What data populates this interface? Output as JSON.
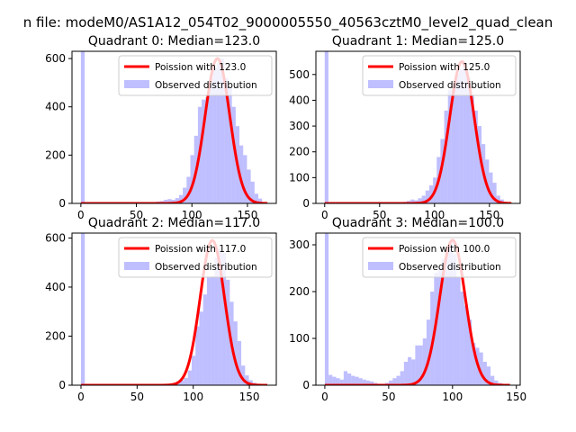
{
  "figure": {
    "suptitle": "n file: modeM0/AS1A12_054T02_9000005550_40563cztM0_level2_quad_clean"
  },
  "chart_data": [
    {
      "type": "bar",
      "title": "Quadrant 0: Median=123.0",
      "xlim": [
        -8,
        176
      ],
      "ylim": [
        0,
        630
      ],
      "xticks": [
        0,
        50,
        100,
        150
      ],
      "yticks": [
        0,
        200,
        400,
        600
      ],
      "legend": "top-right",
      "series": [
        {
          "name": "Poission with 123.0",
          "kind": "line",
          "color": "#ff0000",
          "mean": 123.0,
          "x_range": [
            0,
            168
          ],
          "scale": 600
        },
        {
          "name": "Observed distribution",
          "kind": "histogram",
          "color": "#8080ff",
          "bin_width": 3.4,
          "bins": [
            [
              0,
              630
            ],
            [
              3.4,
              0
            ],
            [
              6.8,
              0
            ],
            [
              10.2,
              0
            ],
            [
              13.6,
              0
            ],
            [
              17,
              0
            ],
            [
              20.4,
              0
            ],
            [
              23.8,
              0
            ],
            [
              27.2,
              0
            ],
            [
              30.6,
              0
            ],
            [
              34,
              0
            ],
            [
              37.4,
              0
            ],
            [
              40.8,
              0
            ],
            [
              44.2,
              0
            ],
            [
              47.6,
              0
            ],
            [
              51,
              0
            ],
            [
              54.4,
              0
            ],
            [
              57.8,
              0
            ],
            [
              61.2,
              0
            ],
            [
              64.6,
              3
            ],
            [
              68,
              8
            ],
            [
              71.4,
              10
            ],
            [
              74.8,
              15
            ],
            [
              78.2,
              18
            ],
            [
              81.6,
              15
            ],
            [
              85,
              22
            ],
            [
              88.4,
              35
            ],
            [
              91.8,
              65
            ],
            [
              95.2,
              110
            ],
            [
              98.6,
              200
            ],
            [
              102,
              280
            ],
            [
              105.4,
              400
            ],
            [
              108.8,
              430
            ],
            [
              112.2,
              440
            ],
            [
              115.6,
              520
            ],
            [
              119,
              560
            ],
            [
              122.4,
              580
            ],
            [
              125.8,
              600
            ],
            [
              129.2,
              520
            ],
            [
              132.6,
              480
            ],
            [
              136,
              400
            ],
            [
              139.4,
              320
            ],
            [
              142.8,
              240
            ],
            [
              146.2,
              200
            ],
            [
              149.6,
              140
            ],
            [
              153,
              90
            ],
            [
              156.4,
              40
            ],
            [
              159.8,
              20
            ],
            [
              163.2,
              5
            ],
            [
              166.6,
              2
            ]
          ]
        }
      ]
    },
    {
      "type": "bar",
      "title": "Quadrant 1: Median=125.0",
      "xlim": [
        -8,
        178
      ],
      "ylim": [
        0,
        590
      ],
      "xticks": [
        0,
        50,
        100,
        150
      ],
      "yticks": [
        0,
        100,
        200,
        300,
        400,
        500
      ],
      "legend": "top-right",
      "series": [
        {
          "name": "Poission with 125.0",
          "kind": "line",
          "color": "#ff0000",
          "mean": 125.0,
          "x_range": [
            0,
            170
          ],
          "scale": 550
        },
        {
          "name": "Observed distribution",
          "kind": "histogram",
          "color": "#8080ff",
          "bin_width": 3.4,
          "bins": [
            [
              0,
              590
            ],
            [
              3.4,
              0
            ],
            [
              6.8,
              0
            ],
            [
              10.2,
              0
            ],
            [
              13.6,
              0
            ],
            [
              17,
              0
            ],
            [
              20.4,
              0
            ],
            [
              23.8,
              0
            ],
            [
              27.2,
              0
            ],
            [
              30.6,
              0
            ],
            [
              34,
              0
            ],
            [
              37.4,
              0
            ],
            [
              40.8,
              0
            ],
            [
              44.2,
              0
            ],
            [
              47.6,
              0
            ],
            [
              51,
              0
            ],
            [
              54.4,
              0
            ],
            [
              57.8,
              0
            ],
            [
              61.2,
              0
            ],
            [
              64.6,
              2
            ],
            [
              68,
              5
            ],
            [
              71.4,
              6
            ],
            [
              74.8,
              10
            ],
            [
              78.2,
              15
            ],
            [
              81.6,
              12
            ],
            [
              85,
              20
            ],
            [
              88.4,
              30
            ],
            [
              91.8,
              50
            ],
            [
              95.2,
              70
            ],
            [
              98.6,
              100
            ],
            [
              102,
              180
            ],
            [
              105.4,
              250
            ],
            [
              108.8,
              360
            ],
            [
              112.2,
              440
            ],
            [
              115.6,
              470
            ],
            [
              119,
              500
            ],
            [
              122.4,
              520
            ],
            [
              125.8,
              545
            ],
            [
              129.2,
              490
            ],
            [
              132.6,
              420
            ],
            [
              136,
              360
            ],
            [
              139.4,
              300
            ],
            [
              142.8,
              230
            ],
            [
              146.2,
              170
            ],
            [
              149.6,
              120
            ],
            [
              153,
              80
            ],
            [
              156.4,
              30
            ],
            [
              159.8,
              15
            ],
            [
              163.2,
              5
            ],
            [
              166.6,
              2
            ]
          ]
        }
      ]
    },
    {
      "type": "bar",
      "title": "Quadrant 2: Median=117.0",
      "xlim": [
        -8,
        174
      ],
      "ylim": [
        0,
        620
      ],
      "xticks": [
        0,
        50,
        100,
        150
      ],
      "yticks": [
        0,
        200,
        400,
        600
      ],
      "legend": "top-right",
      "series": [
        {
          "name": "Poission with 117.0",
          "kind": "line",
          "color": "#ff0000",
          "mean": 117.0,
          "x_range": [
            0,
            166
          ],
          "scale": 590
        },
        {
          "name": "Observed distribution",
          "kind": "histogram",
          "color": "#8080ff",
          "bin_width": 3.4,
          "bins": [
            [
              0,
              620
            ],
            [
              3.4,
              0
            ],
            [
              6.8,
              0
            ],
            [
              10.2,
              0
            ],
            [
              13.6,
              0
            ],
            [
              17,
              0
            ],
            [
              20.4,
              0
            ],
            [
              23.8,
              0
            ],
            [
              27.2,
              0
            ],
            [
              30.6,
              0
            ],
            [
              34,
              0
            ],
            [
              37.4,
              0
            ],
            [
              40.8,
              0
            ],
            [
              44.2,
              0
            ],
            [
              47.6,
              0
            ],
            [
              51,
              0
            ],
            [
              54.4,
              0
            ],
            [
              57.8,
              0
            ],
            [
              61.2,
              0
            ],
            [
              64.6,
              0
            ],
            [
              68,
              2
            ],
            [
              71.4,
              3
            ],
            [
              74.8,
              3
            ],
            [
              78.2,
              5
            ],
            [
              81.6,
              8
            ],
            [
              85,
              12
            ],
            [
              88.4,
              20
            ],
            [
              91.8,
              30
            ],
            [
              95.2,
              60
            ],
            [
              98.6,
              120
            ],
            [
              102,
              240
            ],
            [
              105.4,
              300
            ],
            [
              108.8,
              370
            ],
            [
              112.2,
              440
            ],
            [
              115.6,
              445
            ],
            [
              119,
              520
            ],
            [
              122.4,
              560
            ],
            [
              125.8,
              540
            ],
            [
              129.2,
              430
            ],
            [
              132.6,
              340
            ],
            [
              136,
              260
            ],
            [
              139.4,
              180
            ],
            [
              142.8,
              80
            ],
            [
              146.2,
              40
            ],
            [
              149.6,
              20
            ],
            [
              153,
              10
            ],
            [
              156.4,
              5
            ],
            [
              159.8,
              2
            ],
            [
              163.2,
              1
            ],
            [
              166.6,
              0
            ]
          ]
        }
      ]
    },
    {
      "type": "bar",
      "title": "Quadrant 3: Median=100.0",
      "xlim": [
        -7,
        153
      ],
      "ylim": [
        0,
        325
      ],
      "xticks": [
        0,
        50,
        100,
        150
      ],
      "yticks": [
        0,
        100,
        200,
        300
      ],
      "legend": "top-right",
      "series": [
        {
          "name": "Poission with 100.0",
          "kind": "line",
          "color": "#ff0000",
          "mean": 100.0,
          "x_range": [
            0,
            145
          ],
          "scale": 310
        },
        {
          "name": "Observed distribution",
          "kind": "histogram",
          "color": "#8080ff",
          "bin_width": 2.95,
          "bins": [
            [
              0,
              325
            ],
            [
              2.95,
              22
            ],
            [
              5.9,
              18
            ],
            [
              8.85,
              15
            ],
            [
              11.8,
              12
            ],
            [
              14.75,
              30
            ],
            [
              17.7,
              25
            ],
            [
              20.65,
              20
            ],
            [
              23.6,
              18
            ],
            [
              26.55,
              15
            ],
            [
              29.5,
              12
            ],
            [
              32.45,
              10
            ],
            [
              35.4,
              8
            ],
            [
              38.35,
              5
            ],
            [
              41.3,
              3
            ],
            [
              44.25,
              2
            ],
            [
              47.2,
              5
            ],
            [
              50.15,
              10
            ],
            [
              53.1,
              15
            ],
            [
              56.05,
              20
            ],
            [
              59,
              30
            ],
            [
              61.95,
              50
            ],
            [
              64.9,
              60
            ],
            [
              67.85,
              55
            ],
            [
              70.8,
              85
            ],
            [
              73.75,
              85
            ],
            [
              76.7,
              100
            ],
            [
              79.65,
              140
            ],
            [
              82.6,
              200
            ],
            [
              85.55,
              240
            ],
            [
              88.5,
              250
            ],
            [
              91.45,
              270
            ],
            [
              94.4,
              290
            ],
            [
              97.35,
              310
            ],
            [
              100.3,
              280
            ],
            [
              103.25,
              230
            ],
            [
              106.2,
              200
            ],
            [
              109.15,
              170
            ],
            [
              112.1,
              140
            ],
            [
              115.05,
              90
            ],
            [
              118,
              80
            ],
            [
              120.95,
              70
            ],
            [
              123.9,
              50
            ],
            [
              126.85,
              40
            ],
            [
              129.8,
              20
            ],
            [
              132.75,
              10
            ],
            [
              135.7,
              5
            ],
            [
              138.65,
              2
            ],
            [
              141.6,
              1
            ]
          ]
        }
      ]
    }
  ]
}
